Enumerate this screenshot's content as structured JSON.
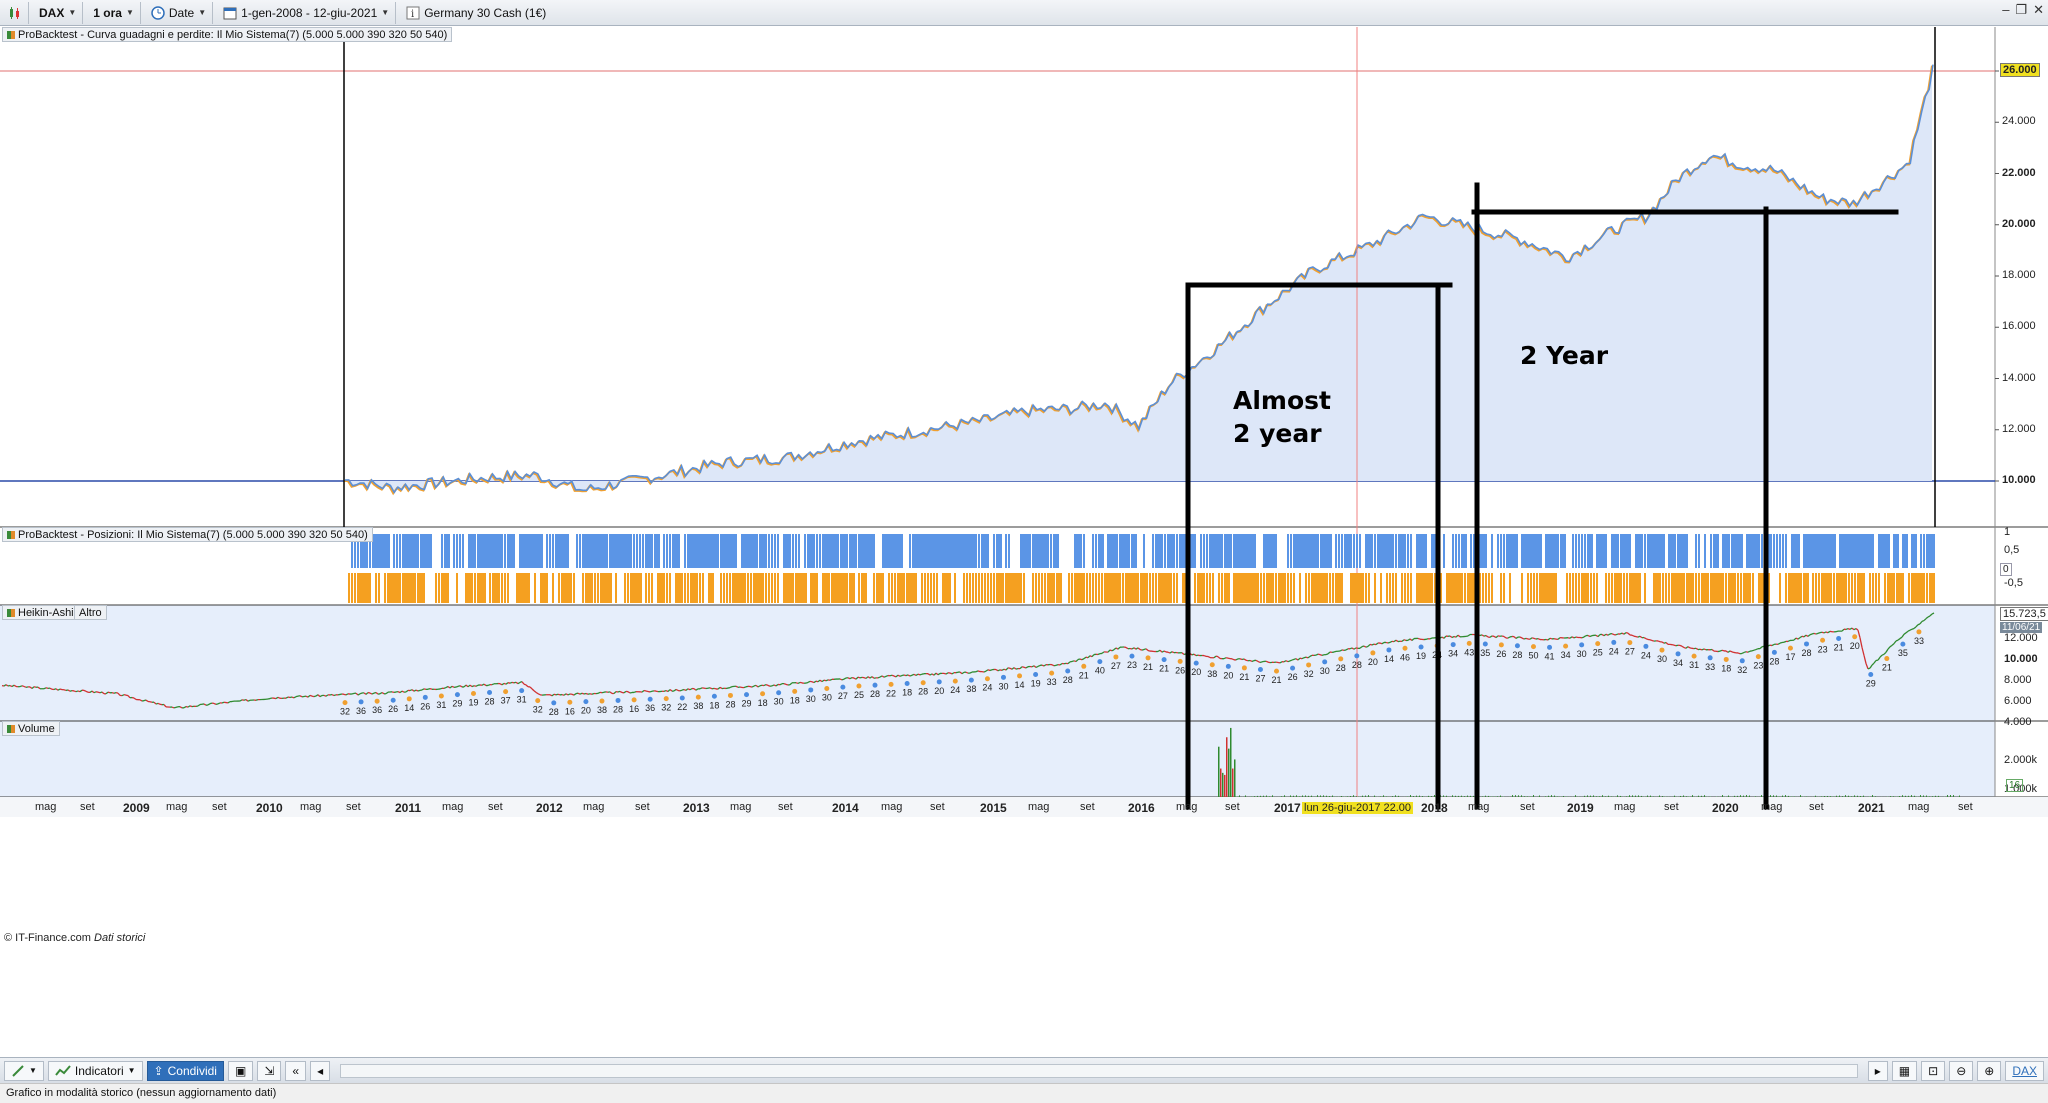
{
  "toolbar": {
    "instrument": "DAX",
    "timeframe": "1 ora",
    "date_mode": "Date",
    "date_range": "1-gen-2008 - 12-giu-2021",
    "instrument_name": "Germany 30 Cash (1€)"
  },
  "panels": {
    "equity_title": "ProBacktest - Curva guadagni e perdite: Il Mio Sistema(7) (5.000 5.000 390 320 50 540)",
    "positions_title": "ProBacktest - Posizioni: Il Mio Sistema(7) (5.000 5.000 390 320 50 540)",
    "heikin_title": "Heikin-Ashi",
    "heikin_more": "Altro",
    "volume_title": "Volume"
  },
  "equity_axis": [
    "26.000",
    "24.000",
    "22.000",
    "20.000",
    "18.000",
    "16.000",
    "14.000",
    "12.000",
    "10.000"
  ],
  "equity_current_badge": "26.000",
  "positions_axis": [
    "1",
    "0,5",
    "-0,5"
  ],
  "positions_badge": "0",
  "heikin_axis": [
    "12.000",
    "10.000",
    "8.000",
    "6.000",
    "4.000"
  ],
  "heikin_badge_value": "15.723,5",
  "heikin_badge_date": "11/06/21",
  "volume_axis": [
    "2.000k",
    "1.000k"
  ],
  "volume_badge": "16",
  "time_axis": [
    {
      "t": "mag",
      "bold": false
    },
    {
      "t": "set",
      "bold": false
    },
    {
      "t": "2009",
      "bold": true
    },
    {
      "t": "mag",
      "bold": false
    },
    {
      "t": "set",
      "bold": false
    },
    {
      "t": "2010",
      "bold": true
    },
    {
      "t": "mag",
      "bold": false
    },
    {
      "t": "set",
      "bold": false
    },
    {
      "t": "2011",
      "bold": true
    },
    {
      "t": "mag",
      "bold": false
    },
    {
      "t": "set",
      "bold": false
    },
    {
      "t": "2012",
      "bold": true
    },
    {
      "t": "mag",
      "bold": false
    },
    {
      "t": "set",
      "bold": false
    },
    {
      "t": "2013",
      "bold": true
    },
    {
      "t": "mag",
      "bold": false
    },
    {
      "t": "set",
      "bold": false
    },
    {
      "t": "2014",
      "bold": true
    },
    {
      "t": "mag",
      "bold": false
    },
    {
      "t": "set",
      "bold": false
    },
    {
      "t": "2015",
      "bold": true
    },
    {
      "t": "mag",
      "bold": false
    },
    {
      "t": "set",
      "bold": false
    },
    {
      "t": "2016",
      "bold": true
    },
    {
      "t": "mag",
      "bold": false
    },
    {
      "t": "set",
      "bold": false
    },
    {
      "t": "2017",
      "bold": true
    },
    {
      "t": "2018",
      "bold": true
    },
    {
      "t": "mag",
      "bold": false
    },
    {
      "t": "set",
      "bold": false
    },
    {
      "t": "2019",
      "bold": true
    },
    {
      "t": "mag",
      "bold": false
    },
    {
      "t": "set",
      "bold": false
    },
    {
      "t": "2020",
      "bold": true
    },
    {
      "t": "mag",
      "bold": false
    },
    {
      "t": "set",
      "bold": false
    },
    {
      "t": "2021",
      "bold": true
    },
    {
      "t": "mag",
      "bold": false
    },
    {
      "t": "set",
      "bold": false
    }
  ],
  "crosshair_date": "lun 26-giu-2017 22.00",
  "annotations": {
    "left_line1": "Almost",
    "left_line2": "2 year",
    "right": "2 Year"
  },
  "heikin_numbers": [
    "32",
    "36",
    "36",
    "26",
    "14",
    "26",
    "31",
    "29",
    "19",
    "28",
    "37",
    "31",
    "32",
    "28",
    "16",
    "20",
    "38",
    "28",
    "16",
    "36",
    "32",
    "22",
    "38",
    "18",
    "28",
    "29",
    "18",
    "30",
    "18",
    "30",
    "30",
    "27",
    "25",
    "28",
    "22",
    "18",
    "28",
    "20",
    "24",
    "38",
    "24",
    "30",
    "14",
    "19",
    "33",
    "28",
    "21",
    "40",
    "27",
    "23",
    "21",
    "21",
    "26",
    "20",
    "38",
    "20",
    "21",
    "27",
    "21",
    "26",
    "32",
    "30",
    "28",
    "28",
    "20",
    "14",
    "46",
    "19",
    "24",
    "34",
    "43",
    "35",
    "26",
    "28",
    "50",
    "41",
    "34",
    "30",
    "25",
    "24",
    "27",
    "24",
    "30",
    "34",
    "31",
    "33",
    "18",
    "32",
    "23",
    "28",
    "17",
    "28",
    "23",
    "21",
    "20",
    "29",
    "21",
    "35",
    "33"
  ],
  "copyright": "© IT-Finance.com",
  "copyright_italic": "Dati storici",
  "bottom": {
    "indicators": "Indicatori",
    "share": "Condividi"
  },
  "status": "Grafico in modalità storico (nessun aggiornamento dati)",
  "colors": {
    "equity_line": "#5b8fd6",
    "equity_drawdown": "#f0a030",
    "positions_long": "#5b95e6",
    "positions_short": "#f5a020",
    "chart_bg": "#e6eefb"
  }
}
